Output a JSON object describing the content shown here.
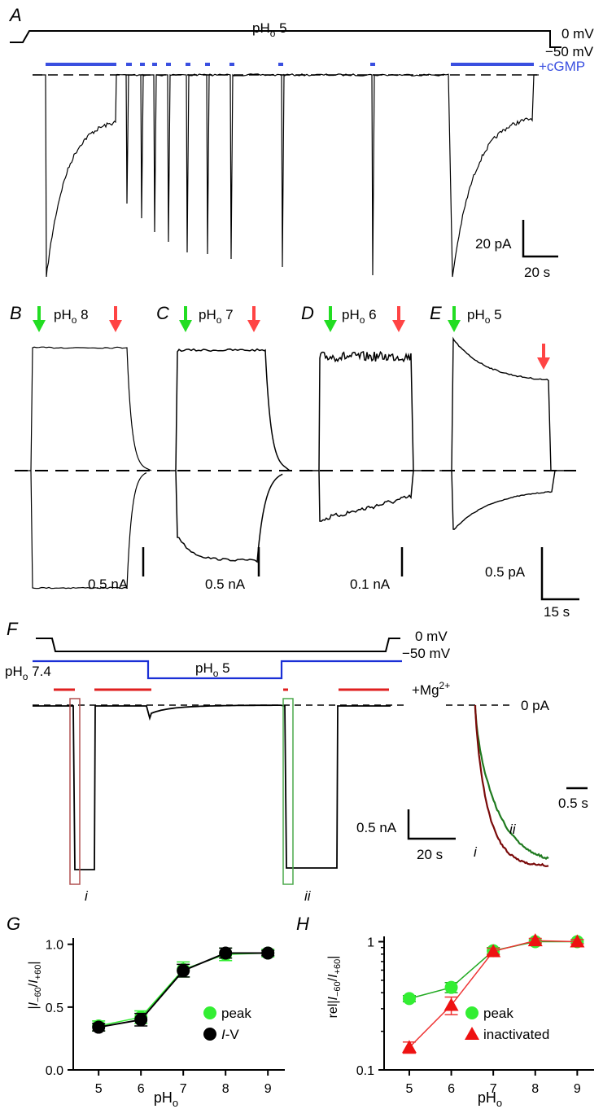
{
  "panels": {
    "A": "A",
    "B": "B",
    "C": "C",
    "D": "D",
    "E": "E",
    "F": "F",
    "G": "G",
    "H": "H"
  },
  "panelA": {
    "ph_label": "pHo 5",
    "ph_main": "pH",
    "ph_sub": "o",
    "ph_value": " 5",
    "v_hold": "0 mV",
    "v_step": "−50 mV",
    "cgmp_label": "+cGMP",
    "scale_y": "20 pA",
    "scale_x": "20 s",
    "colors": {
      "cgmp": "#3a4fe0",
      "trace": "#000000"
    }
  },
  "panelsBE": [
    {
      "panel": "B",
      "ph_main": "pH",
      "ph_sub": "o",
      "ph_value": " 8",
      "scale": "0.5 nA"
    },
    {
      "panel": "C",
      "ph_main": "pH",
      "ph_sub": "o",
      "ph_value": " 7",
      "scale": "0.5 nA"
    },
    {
      "panel": "D",
      "ph_main": "pH",
      "ph_sub": "o",
      "ph_value": " 6",
      "scale": "0.1 nA"
    },
    {
      "panel": "E",
      "ph_main": "pH",
      "ph_sub": "o",
      "ph_value": " 5",
      "scale": "0.5 pA",
      "time_scale": "15 s"
    }
  ],
  "arrow_colors": {
    "on": "#22dd22",
    "off": "#ff4444"
  },
  "panelF": {
    "v_hold": "0 mV",
    "v_step": "−50 mV",
    "ph_start_main": "pH",
    "ph_start_sub": "o",
    "ph_start_value": " 7.4",
    "ph_mid_main": "pH",
    "ph_mid_sub": "o",
    "ph_mid_value": " 5",
    "mg_label": "+Mg",
    "mg_sup": "2+",
    "zero_label": "0 pA",
    "scale_y": "0.5 nA",
    "scale_x": "20 s",
    "inset_scale": "0.5 s",
    "marker_i": "i",
    "marker_ii": "ii",
    "colors": {
      "ph": "#1a2fd6",
      "mg": "#e02020",
      "box_i": "#b05050",
      "box_ii": "#4aa84a",
      "trace_i": "#7a0a0a",
      "trace_ii": "#1f7a1f"
    }
  },
  "chart_data": [
    {
      "panel": "G",
      "type": "line",
      "xlabel_main": "pH",
      "xlabel_sub": "o",
      "ylabel": "|I−60/I+60|",
      "ylabel_parts": {
        "bar": "|",
        "I": "I",
        "sub1": "−60",
        "slash": "/",
        "sub2": "+60"
      },
      "x": [
        5,
        6,
        7,
        8,
        9
      ],
      "xlim": [
        4.4,
        9.4
      ],
      "ylim": [
        0,
        1.05
      ],
      "yticks": [
        "0.0",
        "0.5",
        "1.0"
      ],
      "xticks": [
        "5",
        "6",
        "7",
        "8",
        "9"
      ],
      "legend_position": "bottom-right",
      "series": [
        {
          "name": "peak",
          "color": "#33ee33",
          "marker": "circle",
          "values": [
            0.35,
            0.42,
            0.8,
            0.92,
            0.93
          ],
          "errors": [
            0.04,
            0.05,
            0.06,
            0.05,
            0.03
          ]
        },
        {
          "name": "I-V",
          "name_italic": "I",
          "name_rest": "-V",
          "color": "#000000",
          "marker": "circle",
          "values": [
            0.34,
            0.4,
            0.79,
            0.93,
            0.93
          ],
          "errors": [
            0.03,
            0.05,
            0.05,
            0.04,
            0.02
          ]
        }
      ]
    },
    {
      "panel": "H",
      "type": "line",
      "xlabel_main": "pH",
      "xlabel_sub": "o",
      "ylabel": "rel|I−60/I+60|",
      "ylabel_parts": {
        "pre": "rel|",
        "I": "I",
        "sub1": "−60",
        "slash": "/",
        "sub2": "+60",
        "bar": "|"
      },
      "yscale": "log",
      "x": [
        5,
        6,
        7,
        8,
        9
      ],
      "xlim": [
        4.4,
        9.4
      ],
      "ylim": [
        0.1,
        1.1
      ],
      "yticks": [
        "0.1",
        "1"
      ],
      "xticks": [
        "5",
        "6",
        "7",
        "8",
        "9"
      ],
      "legend_position": "bottom-right",
      "series": [
        {
          "name": "peak",
          "color": "#33ee33",
          "line_color": "#22aa22",
          "marker": "circle",
          "values": [
            0.36,
            0.44,
            0.85,
            1.0,
            1.0
          ],
          "errors": [
            0.02,
            0.04,
            0.05,
            0.03,
            0.03
          ]
        },
        {
          "name": "inactivated",
          "color": "#ee1111",
          "line_color": "#ee3333",
          "marker": "triangle",
          "values": [
            0.15,
            0.32,
            0.84,
            1.02,
            1.0
          ],
          "errors": [
            0.015,
            0.05,
            0.05,
            0.04,
            0.04
          ]
        }
      ]
    }
  ]
}
